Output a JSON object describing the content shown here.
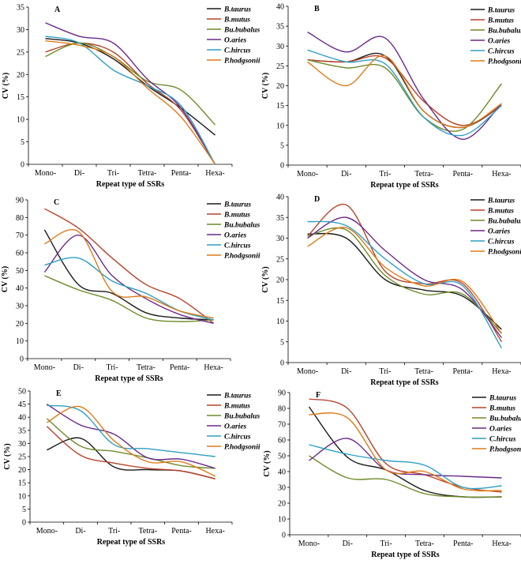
{
  "figure": {
    "series_names": [
      "B.taurus",
      "B.mutus",
      "Bu.bubalus",
      "O.aries",
      "C.hircus",
      "P.hodgsonii"
    ],
    "series_colors": [
      "#1b1b1b",
      "#b9422a",
      "#6e8a2a",
      "#6a2a8a",
      "#2f9fc4",
      "#e07a18"
    ],
    "categories": [
      "Mono-",
      "Di-",
      "Tri-",
      "Tetra-",
      "Penta-",
      "Hexa-"
    ],
    "xlabel": "Repeat type of SSRs",
    "ylabel": "CV  (%)"
  },
  "chart_data": [
    {
      "type": "line",
      "title": "A",
      "xlabel": "Repeat type of SSRs",
      "ylabel": "CV  (%)",
      "categories": [
        "Mono-",
        "Di-",
        "Tri-",
        "Tetra-",
        "Penta-",
        "Hexa-"
      ],
      "ylim": [
        0,
        35
      ],
      "ytick_labels": [
        "0",
        "5",
        "10",
        "15",
        "20",
        "25",
        "30",
        "35"
      ],
      "series": [
        {
          "name": "B.taurus",
          "values": [
            28.0,
            27.0,
            23.5,
            17.5,
            12.5,
            6.5
          ]
        },
        {
          "name": "B.mutus",
          "values": [
            25.0,
            27.0,
            25.0,
            18.0,
            12.0,
            0.0
          ]
        },
        {
          "name": "Bu.bubalus",
          "values": [
            24.0,
            27.0,
            24.0,
            18.5,
            16.5,
            8.8
          ]
        },
        {
          "name": "O.aries",
          "values": [
            31.5,
            28.5,
            27.0,
            19.0,
            12.5,
            0.0
          ]
        },
        {
          "name": "C.hircus",
          "values": [
            28.5,
            27.0,
            21.0,
            17.5,
            13.0,
            0.0
          ]
        },
        {
          "name": "P.hodgsonii",
          "values": [
            27.5,
            26.5,
            24.0,
            17.0,
            10.5,
            0.0
          ]
        }
      ]
    },
    {
      "type": "line",
      "title": "B",
      "xlabel": "Repeat type of SSRs",
      "ylabel": "CV  (%)",
      "categories": [
        "Mono-",
        "Di-",
        "Tri-",
        "Tetra-",
        "Penta-",
        "Hexa-"
      ],
      "ylim": [
        0,
        40
      ],
      "ytick_labels": [
        "0",
        "5",
        "10",
        "15",
        "20",
        "25",
        "30",
        "35",
        "40"
      ],
      "series": [
        {
          "name": "B.taurus",
          "values": [
            26.5,
            26.0,
            27.5,
            13.5,
            9.5,
            15.0
          ]
        },
        {
          "name": "B.mutus",
          "values": [
            26.5,
            26.0,
            27.0,
            16.0,
            10.0,
            15.0
          ]
        },
        {
          "name": "Bu.bubalus",
          "values": [
            26.5,
            24.5,
            24.5,
            12.0,
            9.0,
            20.5
          ]
        },
        {
          "name": "O.aries",
          "values": [
            33.5,
            28.5,
            32.0,
            16.5,
            6.5,
            15.5
          ]
        },
        {
          "name": "C.hircus",
          "values": [
            29.0,
            26.0,
            25.5,
            12.0,
            7.5,
            15.0
          ]
        },
        {
          "name": "P.hodgsonii",
          "values": [
            26.0,
            20.0,
            27.5,
            13.5,
            9.5,
            15.5
          ]
        }
      ]
    },
    {
      "type": "line",
      "title": "C",
      "xlabel": "Repeat type of SSRs",
      "ylabel": "CV  (%)",
      "categories": [
        "Mono-",
        "Di-",
        "Tri-",
        "Tetra-",
        "Penta-",
        "Hexa-"
      ],
      "ylim": [
        0,
        90
      ],
      "ytick_labels": [
        "0",
        "10",
        "20",
        "30",
        "40",
        "50",
        "60",
        "70",
        "80",
        "90"
      ],
      "series": [
        {
          "name": "B.taurus",
          "values": [
            73,
            42,
            37,
            26,
            23,
            22
          ]
        },
        {
          "name": "B.mutus",
          "values": [
            85,
            74,
            57,
            42,
            34,
            20
          ]
        },
        {
          "name": "Bu.bubalus",
          "values": [
            47,
            39,
            33,
            23,
            21,
            22
          ]
        },
        {
          "name": "O.aries",
          "values": [
            49,
            70,
            47,
            34,
            25,
            20
          ]
        },
        {
          "name": "C.hircus",
          "values": [
            53,
            57,
            44,
            37,
            27,
            22
          ]
        },
        {
          "name": "P.hodgsonii",
          "values": [
            65,
            72,
            38,
            35,
            27,
            23
          ]
        }
      ]
    },
    {
      "type": "line",
      "title": "D",
      "xlabel": "Repeat type of SSRs",
      "ylabel": "CV  (%)",
      "categories": [
        "Mono-",
        "Di-",
        "Tri-",
        "Tetra-",
        "Penta-",
        "Hexa-"
      ],
      "ylim": [
        0,
        40
      ],
      "ytick_labels": [
        "0",
        "5",
        "10",
        "15",
        "20",
        "25",
        "30",
        "35",
        "40"
      ],
      "series": [
        {
          "name": "B.taurus",
          "values": [
            31.0,
            30.0,
            20.0,
            17.5,
            16.0,
            8.0
          ]
        },
        {
          "name": "B.mutus",
          "values": [
            30.5,
            38.0,
            22.0,
            19.0,
            19.0,
            5.0
          ]
        },
        {
          "name": "Bu.bubalus",
          "values": [
            30.5,
            32.0,
            21.0,
            16.5,
            16.5,
            7.0
          ]
        },
        {
          "name": "O.aries",
          "values": [
            30.0,
            35.0,
            27.0,
            20.0,
            17.5,
            6.0
          ]
        },
        {
          "name": "C.hircus",
          "values": [
            34.0,
            33.0,
            25.0,
            19.0,
            18.5,
            3.5
          ]
        },
        {
          "name": "P.hodgsonii",
          "values": [
            28.0,
            32.5,
            23.0,
            18.5,
            19.5,
            7.0
          ]
        }
      ]
    },
    {
      "type": "line",
      "title": "E",
      "xlabel": "Repeat type of SSRs",
      "ylabel": "CV  (%)",
      "categories": [
        "Mono-",
        "Di-",
        "Tri-",
        "Tetra-",
        "Penta-",
        "Hexa-"
      ],
      "ylim": [
        0,
        50
      ],
      "ytick_labels": [
        "0",
        "5",
        "10",
        "15",
        "20",
        "25",
        "30",
        "35",
        "40",
        "45",
        "50"
      ],
      "series": [
        {
          "name": "B.taurus",
          "values": [
            27.5,
            32.0,
            21.0,
            20.0,
            19.5,
            16.5
          ]
        },
        {
          "name": "B.mutus",
          "values": [
            36.5,
            25.5,
            22.5,
            20.5,
            19.5,
            16.5
          ]
        },
        {
          "name": "Bu.bubalus",
          "values": [
            39.5,
            29.0,
            27.0,
            24.5,
            21.5,
            20.5
          ]
        },
        {
          "name": "O.aries",
          "values": [
            45.0,
            37.0,
            33.5,
            24.5,
            24.0,
            20.5
          ]
        },
        {
          "name": "C.hircus",
          "values": [
            44.5,
            42.5,
            29.5,
            28.0,
            26.5,
            25.0
          ]
        },
        {
          "name": "P.hodgsonii",
          "values": [
            38.0,
            44.0,
            31.0,
            23.0,
            23.0,
            17.5
          ]
        }
      ]
    },
    {
      "type": "line",
      "title": "F",
      "xlabel": "Repeat type of SSRs",
      "ylabel": "CV  (%)",
      "categories": [
        "Mono-",
        "Di-",
        "Tri-",
        "Tetra-",
        "Penta-",
        "Hexa-"
      ],
      "ylim": [
        0,
        90
      ],
      "ytick_labels": [
        "0",
        "10",
        "20",
        "30",
        "40",
        "50",
        "60",
        "70",
        "80",
        "90"
      ],
      "series": [
        {
          "name": "B.taurus",
          "values": [
            81,
            49,
            41,
            28,
            24,
            24
          ]
        },
        {
          "name": "B.mutus",
          "values": [
            86,
            80,
            45,
            38,
            30,
            27
          ]
        },
        {
          "name": "Bu.bubalus",
          "values": [
            50,
            36,
            35,
            26,
            24,
            24
          ]
        },
        {
          "name": "O.aries",
          "values": [
            47,
            61,
            41,
            38,
            37,
            36
          ]
        },
        {
          "name": "C.hircus",
          "values": [
            57,
            51,
            47,
            44,
            30,
            31
          ]
        },
        {
          "name": "P.hodgsonii",
          "values": [
            76,
            74,
            41,
            40,
            29,
            28
          ]
        }
      ]
    }
  ]
}
